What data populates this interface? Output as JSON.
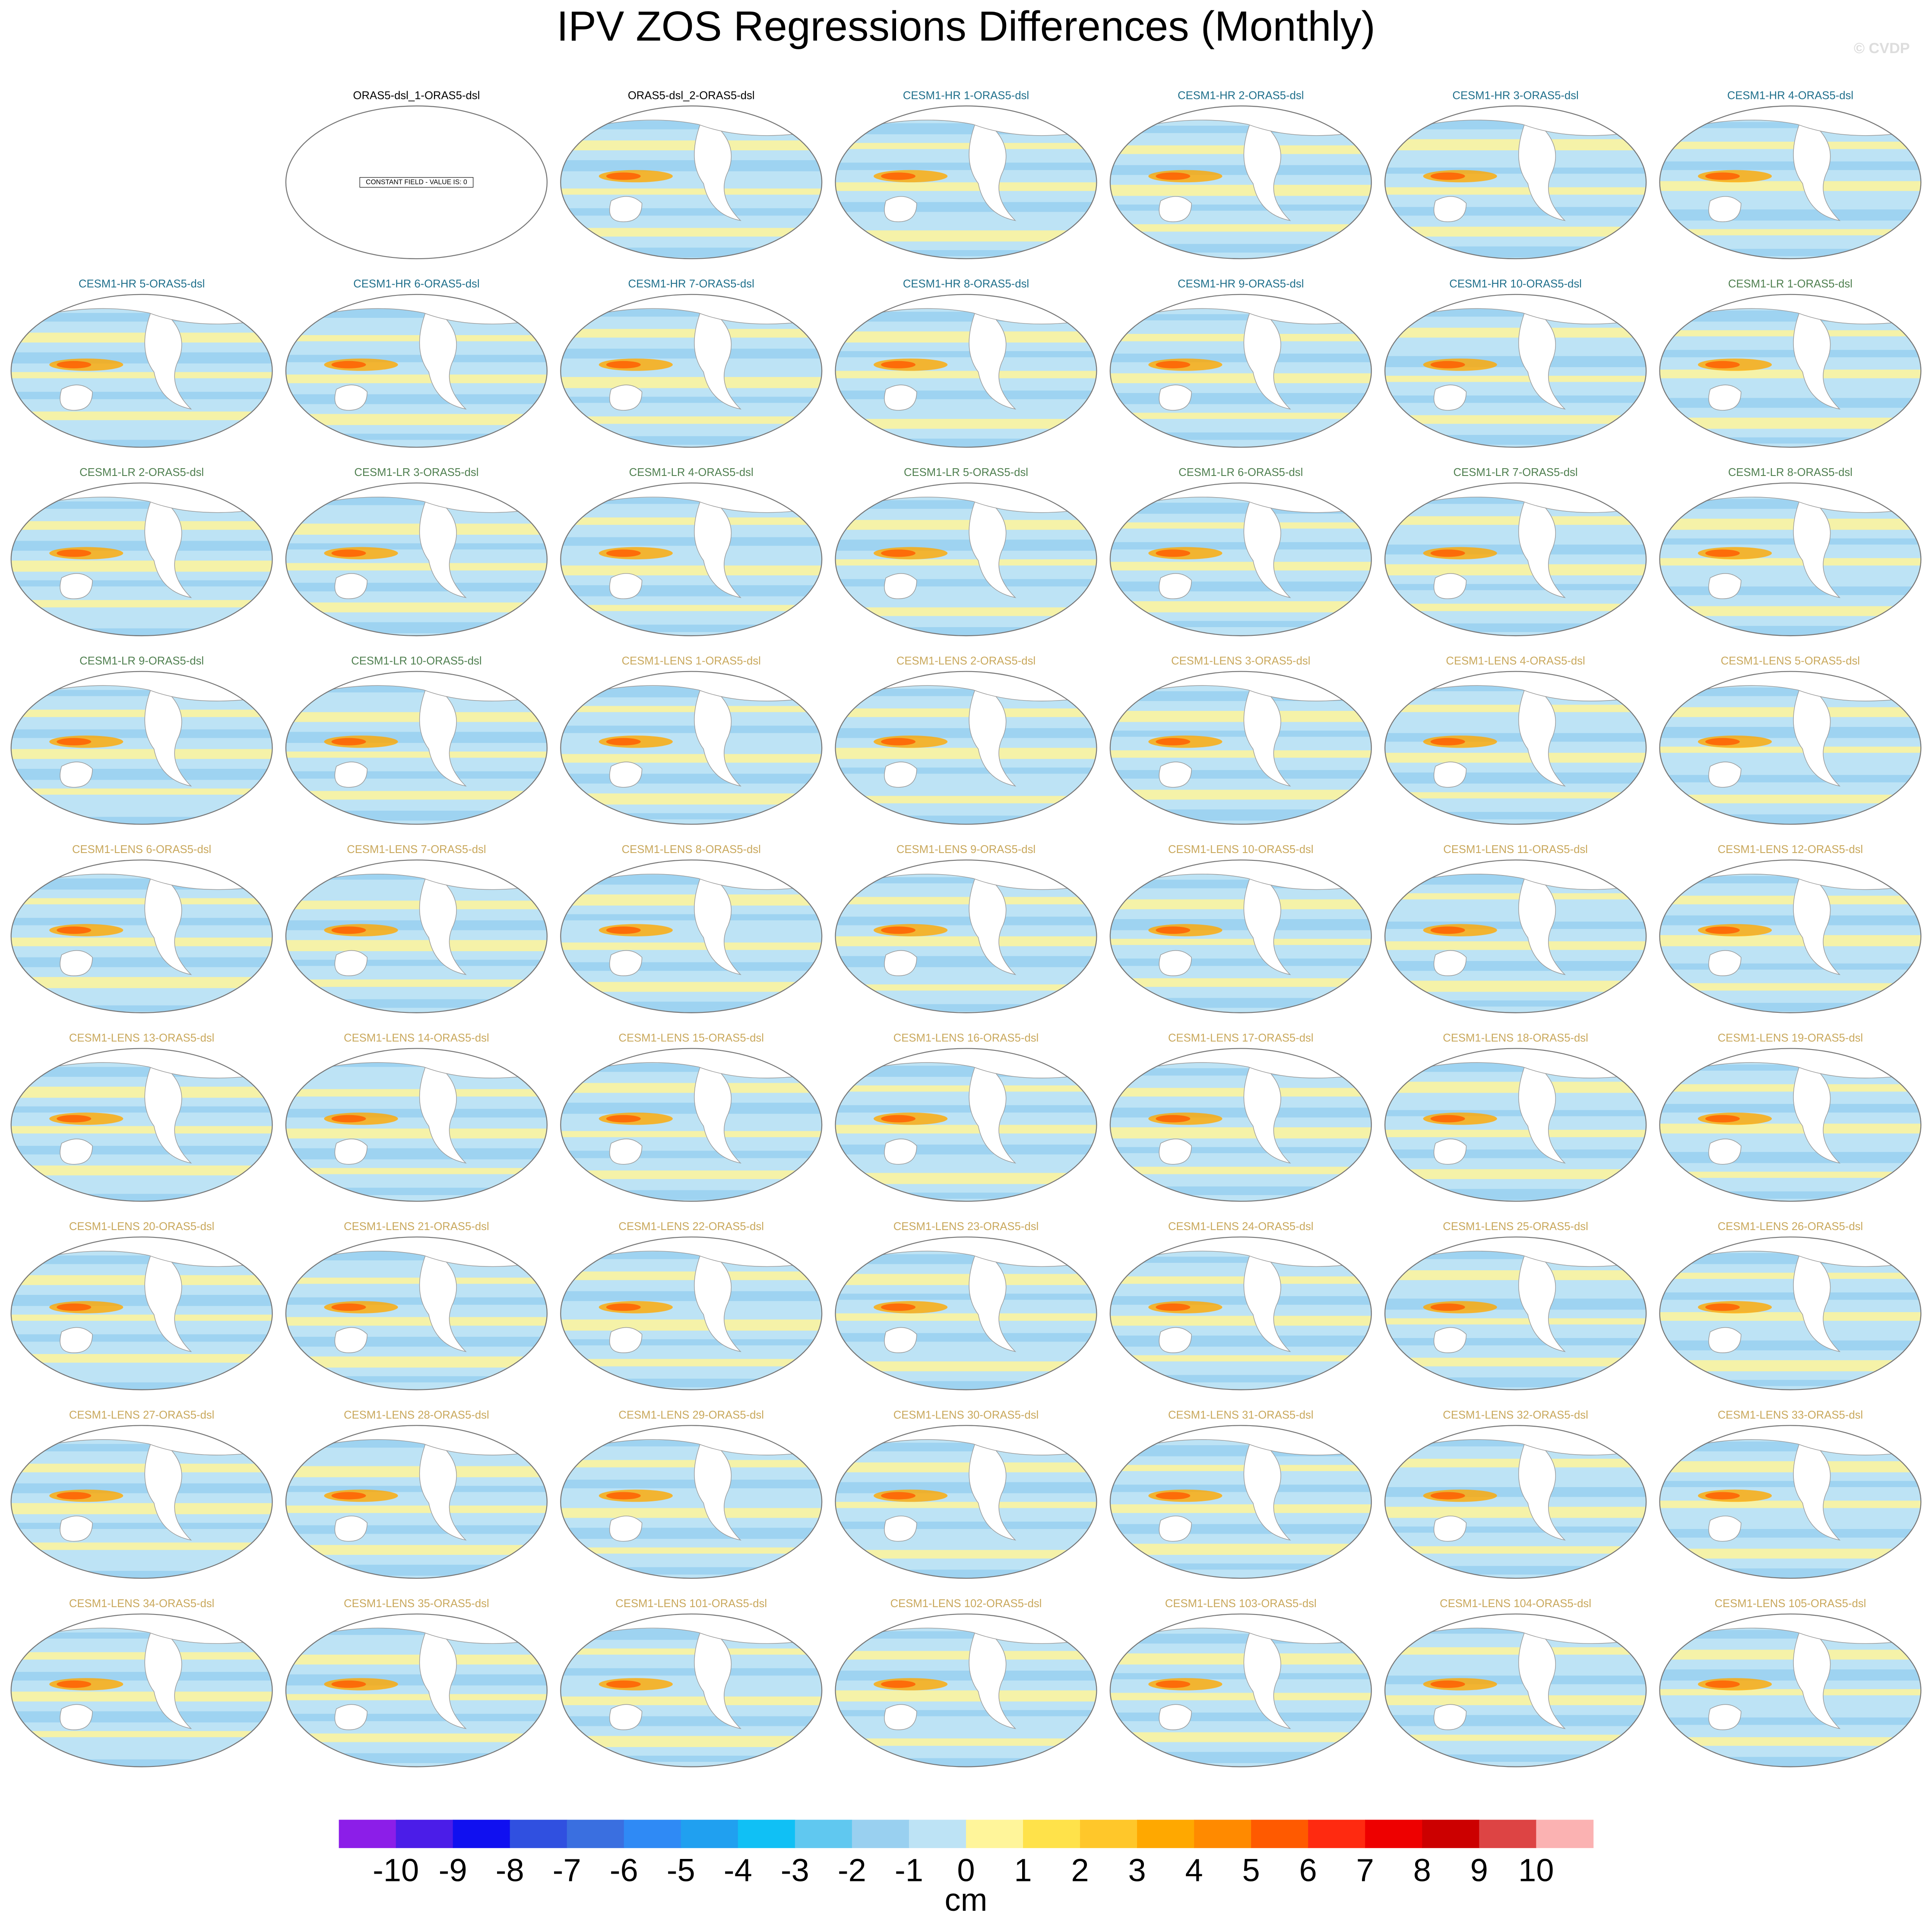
{
  "title": "IPV ZOS Regressions Differences (Monthly)",
  "credit": "© CVDP",
  "panels": [
    {
      "title": "ORAS5-dsl_1-ORAS5-dsl",
      "color": "#000000",
      "note": "CONSTANT FIELD - VALUE IS: 0"
    },
    {
      "title": "ORAS5-dsl_2-ORAS5-dsl",
      "color": "#000000"
    },
    {
      "title": "CESM1-HR 1-ORAS5-dsl",
      "color": "#1f6f8b"
    },
    {
      "title": "CESM1-HR 2-ORAS5-dsl",
      "color": "#1f6f8b"
    },
    {
      "title": "CESM1-HR 3-ORAS5-dsl",
      "color": "#1f6f8b"
    },
    {
      "title": "CESM1-HR 4-ORAS5-dsl",
      "color": "#1f6f8b"
    },
    {
      "title": "CESM1-HR 5-ORAS5-dsl",
      "color": "#1f6f8b"
    },
    {
      "title": "CESM1-HR 6-ORAS5-dsl",
      "color": "#1f6f8b"
    },
    {
      "title": "CESM1-HR 7-ORAS5-dsl",
      "color": "#1f6f8b"
    },
    {
      "title": "CESM1-HR 8-ORAS5-dsl",
      "color": "#1f6f8b"
    },
    {
      "title": "CESM1-HR 9-ORAS5-dsl",
      "color": "#1f6f8b"
    },
    {
      "title": "CESM1-HR 10-ORAS5-dsl",
      "color": "#1f6f8b"
    },
    {
      "title": "CESM1-LR 1-ORAS5-dsl",
      "color": "#4f7f4f"
    },
    {
      "title": "CESM1-LR 2-ORAS5-dsl",
      "color": "#4f7f4f"
    },
    {
      "title": "CESM1-LR 3-ORAS5-dsl",
      "color": "#4f7f4f"
    },
    {
      "title": "CESM1-LR 4-ORAS5-dsl",
      "color": "#4f7f4f"
    },
    {
      "title": "CESM1-LR 5-ORAS5-dsl",
      "color": "#4f7f4f"
    },
    {
      "title": "CESM1-LR 6-ORAS5-dsl",
      "color": "#4f7f4f"
    },
    {
      "title": "CESM1-LR 7-ORAS5-dsl",
      "color": "#4f7f4f"
    },
    {
      "title": "CESM1-LR 8-ORAS5-dsl",
      "color": "#4f7f4f"
    },
    {
      "title": "CESM1-LR 9-ORAS5-dsl",
      "color": "#4f7f4f"
    },
    {
      "title": "CESM1-LR 10-ORAS5-dsl",
      "color": "#4f7f4f"
    },
    {
      "title": "CESM1-LENS 1-ORAS5-dsl",
      "color": "#c9a85c"
    },
    {
      "title": "CESM1-LENS 2-ORAS5-dsl",
      "color": "#c9a85c"
    },
    {
      "title": "CESM1-LENS 3-ORAS5-dsl",
      "color": "#c9a85c"
    },
    {
      "title": "CESM1-LENS 4-ORAS5-dsl",
      "color": "#c9a85c"
    },
    {
      "title": "CESM1-LENS 5-ORAS5-dsl",
      "color": "#c9a85c"
    },
    {
      "title": "CESM1-LENS 6-ORAS5-dsl",
      "color": "#c9a85c"
    },
    {
      "title": "CESM1-LENS 7-ORAS5-dsl",
      "color": "#c9a85c"
    },
    {
      "title": "CESM1-LENS 8-ORAS5-dsl",
      "color": "#c9a85c"
    },
    {
      "title": "CESM1-LENS 9-ORAS5-dsl",
      "color": "#c9a85c"
    },
    {
      "title": "CESM1-LENS 10-ORAS5-dsl",
      "color": "#c9a85c"
    },
    {
      "title": "CESM1-LENS 11-ORAS5-dsl",
      "color": "#c9a85c"
    },
    {
      "title": "CESM1-LENS 12-ORAS5-dsl",
      "color": "#c9a85c"
    },
    {
      "title": "CESM1-LENS 13-ORAS5-dsl",
      "color": "#c9a85c"
    },
    {
      "title": "CESM1-LENS 14-ORAS5-dsl",
      "color": "#c9a85c"
    },
    {
      "title": "CESM1-LENS 15-ORAS5-dsl",
      "color": "#c9a85c"
    },
    {
      "title": "CESM1-LENS 16-ORAS5-dsl",
      "color": "#c9a85c"
    },
    {
      "title": "CESM1-LENS 17-ORAS5-dsl",
      "color": "#c9a85c"
    },
    {
      "title": "CESM1-LENS 18-ORAS5-dsl",
      "color": "#c9a85c"
    },
    {
      "title": "CESM1-LENS 19-ORAS5-dsl",
      "color": "#c9a85c"
    },
    {
      "title": "CESM1-LENS 20-ORAS5-dsl",
      "color": "#c9a85c"
    },
    {
      "title": "CESM1-LENS 21-ORAS5-dsl",
      "color": "#c9a85c"
    },
    {
      "title": "CESM1-LENS 22-ORAS5-dsl",
      "color": "#c9a85c"
    },
    {
      "title": "CESM1-LENS 23-ORAS5-dsl",
      "color": "#c9a85c"
    },
    {
      "title": "CESM1-LENS 24-ORAS5-dsl",
      "color": "#c9a85c"
    },
    {
      "title": "CESM1-LENS 25-ORAS5-dsl",
      "color": "#c9a85c"
    },
    {
      "title": "CESM1-LENS 26-ORAS5-dsl",
      "color": "#c9a85c"
    },
    {
      "title": "CESM1-LENS 27-ORAS5-dsl",
      "color": "#c9a85c"
    },
    {
      "title": "CESM1-LENS 28-ORAS5-dsl",
      "color": "#c9a85c"
    },
    {
      "title": "CESM1-LENS 29-ORAS5-dsl",
      "color": "#c9a85c"
    },
    {
      "title": "CESM1-LENS 30-ORAS5-dsl",
      "color": "#c9a85c"
    },
    {
      "title": "CESM1-LENS 31-ORAS5-dsl",
      "color": "#c9a85c"
    },
    {
      "title": "CESM1-LENS 32-ORAS5-dsl",
      "color": "#c9a85c"
    },
    {
      "title": "CESM1-LENS 33-ORAS5-dsl",
      "color": "#c9a85c"
    },
    {
      "title": "CESM1-LENS 34-ORAS5-dsl",
      "color": "#c9a85c"
    },
    {
      "title": "CESM1-LENS 35-ORAS5-dsl",
      "color": "#c9a85c"
    },
    {
      "title": "CESM1-LENS 101-ORAS5-dsl",
      "color": "#c9a85c"
    },
    {
      "title": "CESM1-LENS 102-ORAS5-dsl",
      "color": "#c9a85c"
    },
    {
      "title": "CESM1-LENS 103-ORAS5-dsl",
      "color": "#c9a85c"
    },
    {
      "title": "CESM1-LENS 104-ORAS5-dsl",
      "color": "#c9a85c"
    },
    {
      "title": "CESM1-LENS 105-ORAS5-dsl",
      "color": "#c9a85c"
    }
  ],
  "colorbar": {
    "levels": [
      -10,
      -9,
      -8,
      -7,
      -6,
      -5,
      -4,
      -3,
      -2,
      -1,
      0,
      1,
      2,
      3,
      4,
      5,
      6,
      7,
      8,
      9,
      10
    ],
    "colors": [
      "#8c1ee8",
      "#4b1de8",
      "#1010f0",
      "#3050e0",
      "#3a6fe0",
      "#2f8af5",
      "#20a0f0",
      "#10c0f5",
      "#60c8f0",
      "#99d0f0",
      "#bde3f5",
      "#fff59a",
      "#ffe24a",
      "#ffc72a",
      "#ffa800",
      "#ff8a00",
      "#ff5a00",
      "#ff2a10",
      "#ee0000",
      "#cc0000",
      "#dd4444",
      "#fbb2b2"
    ],
    "label": "cm"
  }
}
